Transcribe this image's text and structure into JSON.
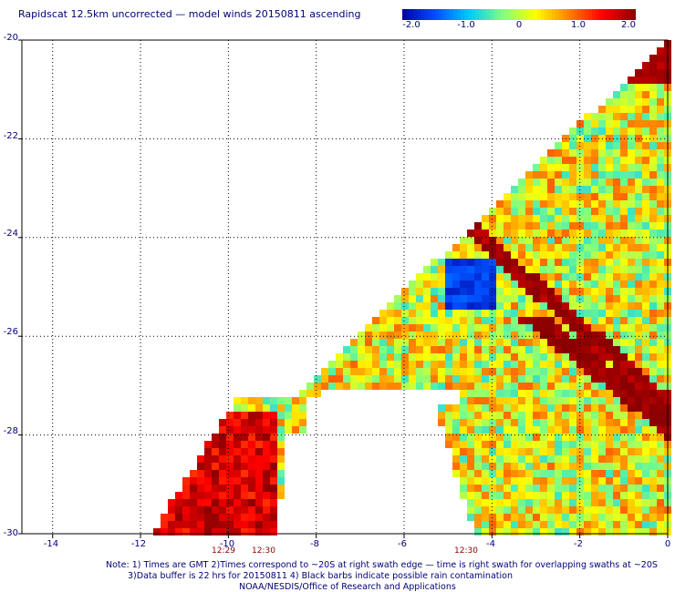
{
  "title": "Rapidscat 12.5km uncorrected — model winds 20150811 ascending",
  "colorbar": {
    "labels": [
      "-2.0",
      "-1.0",
      "0",
      "1.0",
      "2.0"
    ],
    "values": [
      -2.0,
      -1.0,
      0,
      1.0,
      2.0
    ],
    "range": [
      -2.0,
      2.0
    ],
    "colors": [
      "#0000a0",
      "#0050ff",
      "#00c8ff",
      "#80ff80",
      "#ffff00",
      "#ff8000",
      "#ff0000",
      "#8b0000"
    ]
  },
  "map": {
    "lat_labels": [
      "-20",
      "-22",
      "-24",
      "-26",
      "-28",
      "-30"
    ],
    "lat_values": [
      -20,
      -22,
      -24,
      -26,
      -28,
      -30
    ],
    "lon_labels": [
      "-14",
      "-12",
      "-10",
      "-8",
      "-6",
      "-4",
      "-2",
      "0"
    ],
    "lon_values": [
      -14,
      -12,
      -10,
      -8,
      -6,
      -4,
      -2,
      0
    ],
    "lat_range": [
      -30,
      -20
    ],
    "lon_range": [
      -15,
      0
    ],
    "grid": "dotted",
    "time_labels": [
      {
        "text": "12:29",
        "lon": -10.2
      },
      {
        "text": "12:30",
        "lon": -9.7
      },
      {
        "text": "12:30",
        "lon": -4.6
      }
    ]
  },
  "notes": {
    "line1": "Note: 1) Times are GMT 2)Times correspond to ~20S at right swath edge — time is right swath for overlapping swaths at ~20S",
    "line2": "3)Data buffer is 22 hrs for 20150811 4) Black barbs indicate possible rain contamination",
    "line3": "NOAA/NESDIS/Office of Research and Applications"
  }
}
